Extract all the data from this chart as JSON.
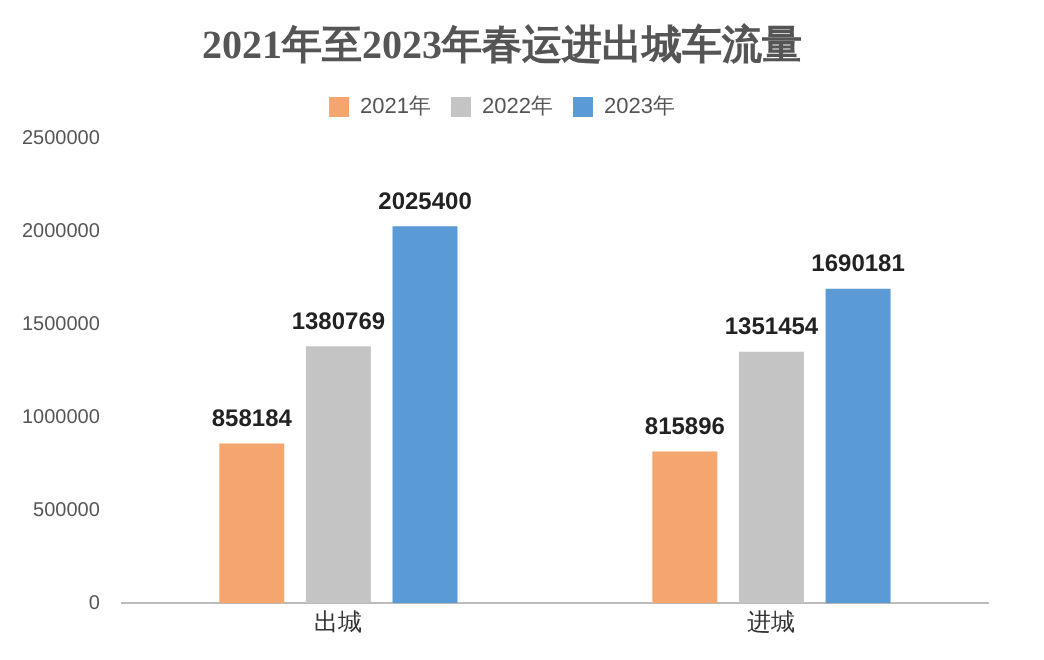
{
  "chart_data": {
    "type": "bar",
    "title": "2021年至2023年春运进出城车流量",
    "categories": [
      "出城",
      "进城"
    ],
    "series": [
      {
        "name": "2021年",
        "color": "#f4a66e",
        "values": [
          858184,
          815896
        ]
      },
      {
        "name": "2022年",
        "color": "#c4c4c4",
        "values": [
          1380769,
          1351454
        ]
      },
      {
        "name": "2023年",
        "color": "#5b9bd5",
        "values": [
          2025400,
          1690181
        ]
      }
    ],
    "ylim": [
      0,
      2500000
    ],
    "yticks": [
      0,
      500000,
      1000000,
      1500000,
      2000000,
      2500000
    ],
    "grid": false,
    "legend": "top",
    "data_labels": true
  }
}
